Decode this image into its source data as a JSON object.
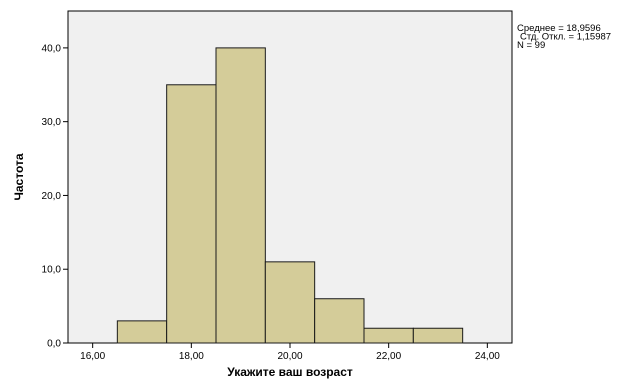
{
  "chart_data": {
    "type": "bar",
    "subtype": "histogram",
    "xlabel": "Укажите ваш возраст",
    "ylabel": "Частота",
    "xlim": [
      15.5,
      24.5
    ],
    "ylim": [
      0,
      45
    ],
    "x_ticks": [
      16,
      18,
      20,
      22,
      24
    ],
    "x_tick_labels": [
      "16,00",
      "18,00",
      "20,00",
      "22,00",
      "24,00"
    ],
    "y_ticks": [
      0,
      10,
      20,
      30,
      40
    ],
    "y_tick_labels": [
      "0,0",
      "10,0",
      "20,0",
      "30,0",
      "40,0"
    ],
    "bins": [
      {
        "from": 16.5,
        "to": 17.5,
        "value": 3
      },
      {
        "from": 17.5,
        "to": 18.5,
        "value": 35
      },
      {
        "from": 18.5,
        "to": 19.5,
        "value": 40
      },
      {
        "from": 19.5,
        "to": 20.5,
        "value": 11
      },
      {
        "from": 20.5,
        "to": 21.5,
        "value": 6
      },
      {
        "from": 21.5,
        "to": 22.5,
        "value": 2
      },
      {
        "from": 22.5,
        "to": 23.5,
        "value": 2
      }
    ],
    "stats": [
      "Среднее = 18,9596",
      "Стд. Откл. = 1,15987",
      "N = 99"
    ],
    "grid": false,
    "legend_position": "top-right",
    "colors": {
      "bar_fill": "#d4cc99",
      "bar_stroke": "#1a1a1a",
      "plot_background": "#f0f0f0",
      "axis": "#000000"
    }
  }
}
